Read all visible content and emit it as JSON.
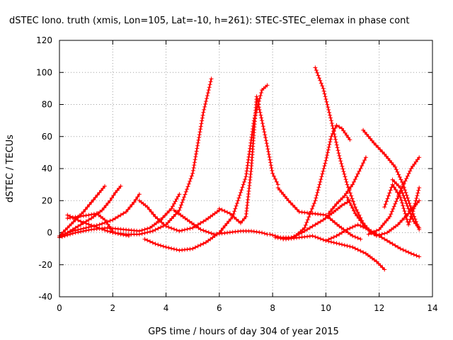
{
  "chart_data": {
    "type": "scatter",
    "title": "dSTEC Iono. truth (xmis, Lon=105, Lat=-10, h=261): STEC-STEC_elemax in phase cont",
    "xlabel": "GPS time / hours of day 304 of year 2015",
    "ylabel": "dSTEC  / TECUs",
    "xlim": [
      0,
      14
    ],
    "ylim": [
      -40,
      120
    ],
    "xticks": [
      0,
      2,
      4,
      6,
      8,
      10,
      12,
      14
    ],
    "yticks": [
      -40,
      -20,
      0,
      20,
      40,
      60,
      80,
      100,
      120
    ],
    "grid": true,
    "legend": "none",
    "marker": "plus",
    "color": "#ff0000",
    "series": [
      {
        "x": [
          0.0,
          0.3,
          0.6,
          0.9,
          1.2,
          1.5,
          1.7
        ],
        "y": [
          -2,
          3,
          8,
          13,
          19,
          25,
          29
        ]
      },
      {
        "x": [
          0.0,
          0.4,
          0.8,
          1.2,
          1.6,
          1.9,
          2.1,
          2.3
        ],
        "y": [
          -3,
          1,
          5,
          9,
          14,
          20,
          25,
          29
        ]
      },
      {
        "x": [
          0.0,
          0.5,
          1.0,
          1.5,
          2.0,
          2.5,
          2.8,
          3.0
        ],
        "y": [
          -2,
          1,
          3,
          5,
          8,
          13,
          19,
          24
        ]
      },
      {
        "x": [
          0.3,
          0.8,
          1.3,
          1.8,
          2.3,
          2.6
        ],
        "y": [
          11,
          7,
          4,
          1,
          -1,
          -2
        ]
      },
      {
        "x": [
          0.3,
          0.7,
          1.1,
          1.4,
          1.7,
          2.0
        ],
        "y": [
          9,
          10,
          11,
          12,
          8,
          1
        ]
      },
      {
        "x": [
          0.0,
          0.6,
          1.2,
          1.8,
          2.4,
          3.0,
          3.4,
          3.8,
          4.2,
          4.5
        ],
        "y": [
          -3,
          0,
          2,
          3,
          2,
          1,
          3,
          8,
          15,
          24
        ]
      },
      {
        "x": [
          2.0,
          2.5,
          3.0,
          3.5,
          4.0,
          4.5,
          5.0,
          5.4,
          5.7
        ],
        "y": [
          0,
          -1,
          -1,
          1,
          5,
          14,
          37,
          75,
          96
        ]
      },
      {
        "x": [
          3.0,
          3.3,
          3.6,
          4.0,
          4.5,
          5.0,
          5.5,
          6.0
        ],
        "y": [
          20,
          16,
          10,
          4,
          1,
          3,
          8,
          14
        ]
      },
      {
        "x": [
          3.2,
          3.6,
          4.0,
          4.5,
          5.0,
          5.5,
          6.0,
          6.5,
          7.0,
          7.3,
          7.6,
          7.8
        ],
        "y": [
          -4,
          -7,
          -9,
          -11,
          -10,
          -6,
          0,
          10,
          35,
          70,
          89,
          92
        ]
      },
      {
        "x": [
          4.3,
          4.8,
          5.3,
          5.8,
          6.3,
          6.8,
          7.2,
          7.6,
          7.8
        ],
        "y": [
          14,
          8,
          2,
          -1,
          0,
          1,
          1,
          0,
          -1
        ]
      },
      {
        "x": [
          6.0,
          6.4,
          6.8,
          7.0,
          7.2,
          7.4,
          7.6,
          7.8,
          8.0,
          8.2
        ],
        "y": [
          15,
          12,
          6,
          10,
          40,
          85,
          70,
          54,
          37,
          30
        ]
      },
      {
        "x": [
          7.9,
          8.3,
          8.7,
          9.1,
          9.5,
          9.9,
          10.3,
          10.6,
          10.9
        ],
        "y": [
          -1,
          -3,
          -3,
          0,
          4,
          8,
          13,
          17,
          20
        ]
      },
      {
        "x": [
          8.1,
          8.5,
          9.0,
          9.5,
          10.0,
          10.5,
          11.0,
          11.5,
          11.9,
          12.2
        ],
        "y": [
          -3,
          -4,
          -3,
          -2,
          -5,
          -7,
          -9,
          -13,
          -18,
          -23
        ]
      },
      {
        "x": [
          8.2,
          8.6,
          9.0,
          9.5,
          10.0,
          10.5,
          11.0,
          11.3
        ],
        "y": [
          28,
          20,
          13,
          12,
          11,
          4,
          -2,
          -4
        ]
      },
      {
        "x": [
          8.4,
          8.8,
          9.2,
          9.6,
          10.0,
          10.2,
          10.4,
          10.6,
          10.9
        ],
        "y": [
          -4,
          -3,
          3,
          20,
          45,
          60,
          67,
          65,
          58
        ]
      },
      {
        "x": [
          9.6,
          9.9,
          10.2,
          10.5,
          10.8,
          11.1,
          11.4,
          11.7,
          12.0
        ],
        "y": [
          103,
          90,
          70,
          48,
          30,
          16,
          6,
          0,
          -2
        ]
      },
      {
        "x": [
          10.0,
          10.4,
          10.8,
          11.2,
          11.6,
          12.0,
          12.4,
          12.8,
          13.2,
          13.5
        ],
        "y": [
          -5,
          -2,
          2,
          5,
          2,
          -2,
          -6,
          -10,
          -13,
          -15
        ]
      },
      {
        "x": [
          10.1,
          10.4,
          10.7,
          11.0,
          11.3,
          11.5
        ],
        "y": [
          12,
          18,
          23,
          30,
          40,
          47
        ]
      },
      {
        "x": [
          10.8,
          11.1,
          11.5,
          11.9,
          12.3,
          12.7,
          13.1,
          13.5
        ],
        "y": [
          22,
          12,
          3,
          -2,
          0,
          5,
          12,
          20
        ]
      },
      {
        "x": [
          11.4,
          11.8,
          12.2,
          12.6,
          12.9,
          13.2,
          13.5
        ],
        "y": [
          64,
          56,
          49,
          41,
          30,
          15,
          2
        ]
      },
      {
        "x": [
          11.6,
          12.0,
          12.4,
          12.8,
          13.2,
          13.5
        ],
        "y": [
          -1,
          2,
          10,
          26,
          40,
          47
        ]
      },
      {
        "x": [
          12.2,
          12.5,
          12.8,
          13.1,
          13.3,
          13.5
        ],
        "y": [
          16,
          30,
          22,
          5,
          15,
          28
        ]
      },
      {
        "x": [
          12.5,
          12.8,
          13.1,
          13.3,
          13.5
        ],
        "y": [
          33,
          28,
          15,
          7,
          3
        ]
      }
    ]
  }
}
